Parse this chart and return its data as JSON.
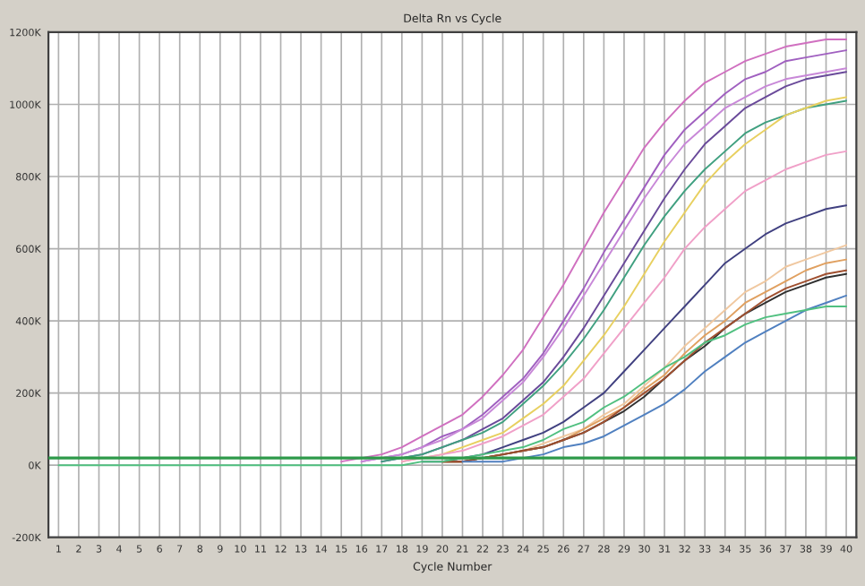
{
  "chart_data": {
    "type": "line",
    "title": "Delta Rn vs Cycle",
    "xlabel": "Cycle Number",
    "x": [
      1,
      2,
      3,
      4,
      5,
      6,
      7,
      8,
      9,
      10,
      11,
      12,
      13,
      14,
      15,
      16,
      17,
      18,
      19,
      20,
      21,
      22,
      23,
      24,
      25,
      26,
      27,
      28,
      29,
      30,
      31,
      32,
      33,
      34,
      35,
      36,
      37,
      38,
      39,
      40
    ],
    "xlim": [
      0.5,
      40.5
    ],
    "xticks": [
      1,
      2,
      3,
      4,
      5,
      6,
      7,
      8,
      9,
      10,
      11,
      12,
      13,
      14,
      15,
      16,
      17,
      18,
      19,
      20,
      21,
      22,
      23,
      24,
      25,
      26,
      27,
      28,
      29,
      30,
      31,
      32,
      33,
      34,
      35,
      36,
      37,
      38,
      39,
      40
    ],
    "ylim": [
      -200000,
      1200000
    ],
    "yticks": [
      {
        "value": -200000,
        "label": "-200K"
      },
      {
        "value": 0,
        "label": "0K"
      },
      {
        "value": 200000,
        "label": "200K"
      },
      {
        "value": 400000,
        "label": "400K"
      },
      {
        "value": 600000,
        "label": "600K"
      },
      {
        "value": 800000,
        "label": "800K"
      },
      {
        "value": 1000000,
        "label": "1000K"
      },
      {
        "value": 1200000,
        "label": "1200K"
      }
    ],
    "grid": true,
    "legend": false,
    "marker": "none",
    "line_style": "solid",
    "ref_lines": [
      {
        "axis": "y",
        "value": 20000,
        "color": "#2e9a4a"
      }
    ],
    "series": [
      {
        "color": "#d070c0",
        "values": [
          null,
          null,
          null,
          null,
          null,
          null,
          null,
          null,
          null,
          null,
          null,
          null,
          null,
          null,
          10000,
          20000,
          30000,
          50000,
          80000,
          110000,
          140000,
          190000,
          250000,
          320000,
          410000,
          500000,
          600000,
          700000,
          790000,
          880000,
          950000,
          1010000,
          1060000,
          1090000,
          1120000,
          1140000,
          1160000,
          1170000,
          1180000,
          1180000
        ]
      },
      {
        "color": "#a060c0",
        "values": [
          null,
          null,
          null,
          null,
          null,
          null,
          null,
          null,
          null,
          null,
          null,
          null,
          null,
          null,
          null,
          10000,
          20000,
          30000,
          50000,
          80000,
          100000,
          140000,
          190000,
          240000,
          310000,
          400000,
          490000,
          590000,
          680000,
          770000,
          860000,
          930000,
          980000,
          1030000,
          1070000,
          1090000,
          1120000,
          1130000,
          1140000,
          1150000
        ]
      },
      {
        "color": "#c888d8",
        "values": [
          null,
          null,
          null,
          null,
          null,
          null,
          null,
          null,
          null,
          null,
          null,
          null,
          null,
          null,
          null,
          10000,
          20000,
          30000,
          50000,
          70000,
          100000,
          130000,
          180000,
          230000,
          300000,
          380000,
          470000,
          560000,
          650000,
          740000,
          820000,
          890000,
          940000,
          990000,
          1020000,
          1050000,
          1070000,
          1080000,
          1090000,
          1100000
        ]
      },
      {
        "color": "#6a4a9a",
        "values": [
          null,
          null,
          null,
          null,
          null,
          null,
          null,
          null,
          null,
          null,
          null,
          null,
          null,
          null,
          null,
          null,
          10000,
          20000,
          30000,
          50000,
          70000,
          100000,
          130000,
          180000,
          230000,
          300000,
          380000,
          470000,
          560000,
          650000,
          740000,
          820000,
          890000,
          940000,
          990000,
          1020000,
          1050000,
          1070000,
          1080000,
          1090000
        ]
      },
      {
        "color": "#40a080",
        "values": [
          null,
          null,
          null,
          null,
          null,
          null,
          null,
          null,
          null,
          null,
          null,
          null,
          null,
          null,
          null,
          null,
          10000,
          20000,
          30000,
          50000,
          70000,
          90000,
          120000,
          170000,
          220000,
          280000,
          350000,
          430000,
          520000,
          610000,
          690000,
          760000,
          820000,
          870000,
          920000,
          950000,
          970000,
          990000,
          1000000,
          1010000
        ]
      },
      {
        "color": "#e8d060",
        "values": [
          null,
          null,
          null,
          null,
          null,
          null,
          null,
          null,
          null,
          null,
          null,
          null,
          null,
          null,
          null,
          null,
          null,
          10000,
          20000,
          30000,
          50000,
          70000,
          90000,
          130000,
          170000,
          220000,
          290000,
          360000,
          440000,
          530000,
          620000,
          700000,
          780000,
          840000,
          890000,
          930000,
          970000,
          990000,
          1010000,
          1020000
        ]
      },
      {
        "color": "#f0a0c8",
        "values": [
          null,
          null,
          null,
          null,
          null,
          null,
          null,
          null,
          null,
          null,
          null,
          null,
          null,
          null,
          null,
          null,
          null,
          10000,
          20000,
          30000,
          40000,
          60000,
          80000,
          110000,
          140000,
          190000,
          240000,
          310000,
          380000,
          450000,
          520000,
          600000,
          660000,
          710000,
          760000,
          790000,
          820000,
          840000,
          860000,
          870000
        ]
      },
      {
        "color": "#404080",
        "values": [
          null,
          null,
          null,
          null,
          null,
          null,
          null,
          null,
          null,
          null,
          null,
          null,
          null,
          null,
          null,
          null,
          null,
          null,
          10000,
          10000,
          20000,
          30000,
          50000,
          70000,
          90000,
          120000,
          160000,
          200000,
          260000,
          320000,
          380000,
          440000,
          500000,
          560000,
          600000,
          640000,
          670000,
          690000,
          710000,
          720000
        ]
      },
      {
        "color": "#f0c8a0",
        "values": [
          null,
          null,
          null,
          null,
          null,
          null,
          null,
          null,
          null,
          null,
          null,
          null,
          null,
          null,
          null,
          null,
          null,
          null,
          null,
          10000,
          10000,
          20000,
          30000,
          40000,
          60000,
          80000,
          100000,
          140000,
          170000,
          220000,
          270000,
          330000,
          380000,
          430000,
          480000,
          510000,
          550000,
          570000,
          590000,
          610000
        ]
      },
      {
        "color": "#e0a060",
        "values": [
          null,
          null,
          null,
          null,
          null,
          null,
          null,
          null,
          null,
          null,
          null,
          null,
          null,
          null,
          null,
          null,
          null,
          null,
          null,
          10000,
          10000,
          20000,
          30000,
          40000,
          50000,
          70000,
          100000,
          130000,
          160000,
          210000,
          250000,
          310000,
          360000,
          400000,
          450000,
          480000,
          510000,
          540000,
          560000,
          570000
        ]
      },
      {
        "color": "#303030",
        "values": [
          null,
          null,
          null,
          null,
          null,
          null,
          null,
          null,
          null,
          null,
          null,
          null,
          null,
          null,
          null,
          null,
          null,
          null,
          null,
          10000,
          10000,
          20000,
          30000,
          40000,
          50000,
          70000,
          90000,
          120000,
          150000,
          190000,
          240000,
          290000,
          330000,
          380000,
          420000,
          450000,
          480000,
          500000,
          520000,
          530000
        ]
      },
      {
        "color": "#a05030",
        "values": [
          null,
          null,
          null,
          null,
          null,
          null,
          null,
          null,
          null,
          null,
          null,
          null,
          null,
          null,
          null,
          null,
          null,
          null,
          null,
          10000,
          10000,
          20000,
          30000,
          40000,
          50000,
          70000,
          90000,
          120000,
          160000,
          200000,
          240000,
          290000,
          340000,
          380000,
          420000,
          460000,
          490000,
          510000,
          530000,
          540000
        ]
      },
      {
        "color": "#5080c0",
        "values": [
          null,
          null,
          null,
          null,
          null,
          null,
          null,
          null,
          null,
          null,
          null,
          null,
          null,
          null,
          null,
          null,
          null,
          null,
          null,
          null,
          10000,
          10000,
          10000,
          20000,
          30000,
          50000,
          60000,
          80000,
          110000,
          140000,
          170000,
          210000,
          260000,
          300000,
          340000,
          370000,
          400000,
          430000,
          450000,
          470000
        ]
      },
      {
        "color": "#50c080",
        "values": [
          0,
          0,
          0,
          0,
          0,
          0,
          0,
          0,
          0,
          0,
          0,
          0,
          0,
          0,
          0,
          0,
          0,
          0,
          10000,
          10000,
          20000,
          30000,
          40000,
          50000,
          70000,
          100000,
          120000,
          160000,
          190000,
          230000,
          270000,
          300000,
          340000,
          360000,
          390000,
          410000,
          420000,
          430000,
          440000,
          440000
        ]
      }
    ]
  }
}
